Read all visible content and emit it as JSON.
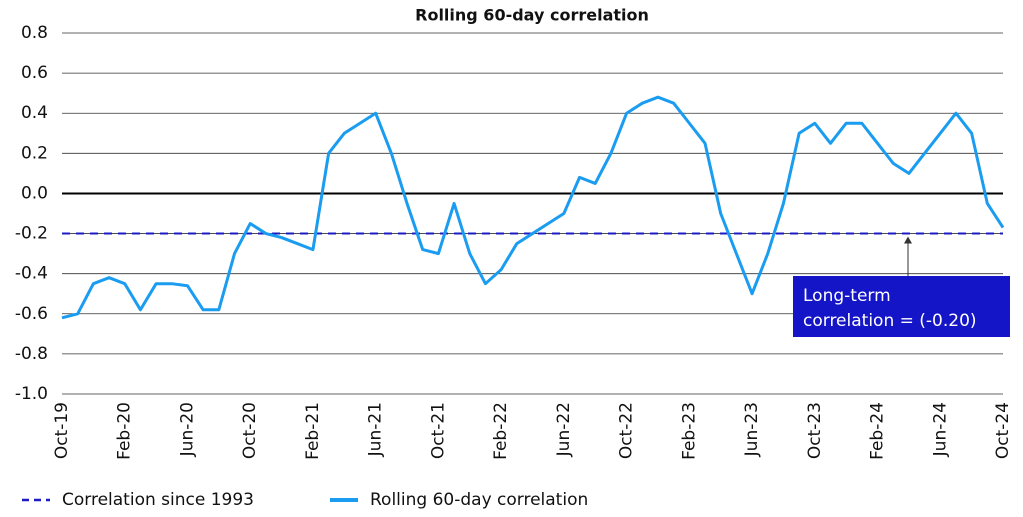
{
  "chart_data": {
    "type": "line",
    "title": "Rolling 60-day correlation",
    "x": [
      "Oct-19",
      "Nov-19",
      "Dec-19",
      "Jan-20",
      "Feb-20",
      "Mar-20",
      "Apr-20",
      "May-20",
      "Jun-20",
      "Jul-20",
      "Aug-20",
      "Sep-20",
      "Oct-20",
      "Nov-20",
      "Dec-20",
      "Jan-21",
      "Feb-21",
      "Mar-21",
      "Apr-21",
      "May-21",
      "Jun-21",
      "Jul-21",
      "Aug-21",
      "Sep-21",
      "Oct-21",
      "Nov-21",
      "Dec-21",
      "Jan-22",
      "Feb-22",
      "Mar-22",
      "Apr-22",
      "May-22",
      "Jun-22",
      "Jul-22",
      "Aug-22",
      "Sep-22",
      "Oct-22",
      "Nov-22",
      "Dec-22",
      "Jan-23",
      "Feb-23",
      "Mar-23",
      "Apr-23",
      "May-23",
      "Jun-23",
      "Jul-23",
      "Aug-23",
      "Sep-23",
      "Oct-23",
      "Nov-23",
      "Dec-23",
      "Jan-24",
      "Feb-24",
      "Mar-24",
      "Apr-24",
      "May-24",
      "Jun-24",
      "Jul-24",
      "Aug-24",
      "Sep-24",
      "Oct-24"
    ],
    "xticks": [
      "Oct-19",
      "Feb-20",
      "Jun-20",
      "Oct-20",
      "Feb-21",
      "Jun-21",
      "Oct-21",
      "Feb-22",
      "Jun-22",
      "Oct-22",
      "Feb-23",
      "Jun-23",
      "Oct-23",
      "Feb-24",
      "Jun-24",
      "Oct-24"
    ],
    "series": [
      {
        "name": "Rolling 60-day correlation",
        "color": "#1a9cf0",
        "values": [
          -0.62,
          -0.6,
          -0.45,
          -0.42,
          -0.45,
          -0.58,
          -0.45,
          -0.45,
          -0.46,
          -0.58,
          -0.58,
          -0.3,
          -0.15,
          -0.2,
          -0.22,
          -0.25,
          -0.28,
          0.2,
          0.3,
          0.35,
          0.4,
          0.2,
          -0.05,
          -0.28,
          -0.3,
          -0.05,
          -0.3,
          -0.45,
          -0.38,
          -0.25,
          -0.2,
          -0.15,
          -0.1,
          0.08,
          0.05,
          0.2,
          0.4,
          0.45,
          0.48,
          0.45,
          0.35,
          0.25,
          -0.1,
          -0.3,
          -0.5,
          -0.3,
          -0.05,
          0.3,
          0.35,
          0.25,
          0.35,
          0.35,
          0.25,
          0.15,
          0.1,
          0.2,
          0.3,
          0.4,
          0.3,
          -0.05,
          -0.17
        ]
      }
    ],
    "reference_line": {
      "name": "Correlation since 1993",
      "value": -0.2,
      "color": "#1c1cc4"
    },
    "annotation": {
      "lines": [
        "Long-term",
        "correlation  = (-0.20)"
      ],
      "color": "#1515c8"
    },
    "ylim": [
      -1.0,
      0.8
    ],
    "yticks": [
      {
        "value": -1.0,
        "label": "-1.0"
      },
      -0.8,
      -0.6,
      -0.4,
      -0.2,
      {
        "value": 0,
        "label": "0.0"
      },
      0.2,
      0.4,
      0.6,
      0.8
    ],
    "grid": true
  }
}
